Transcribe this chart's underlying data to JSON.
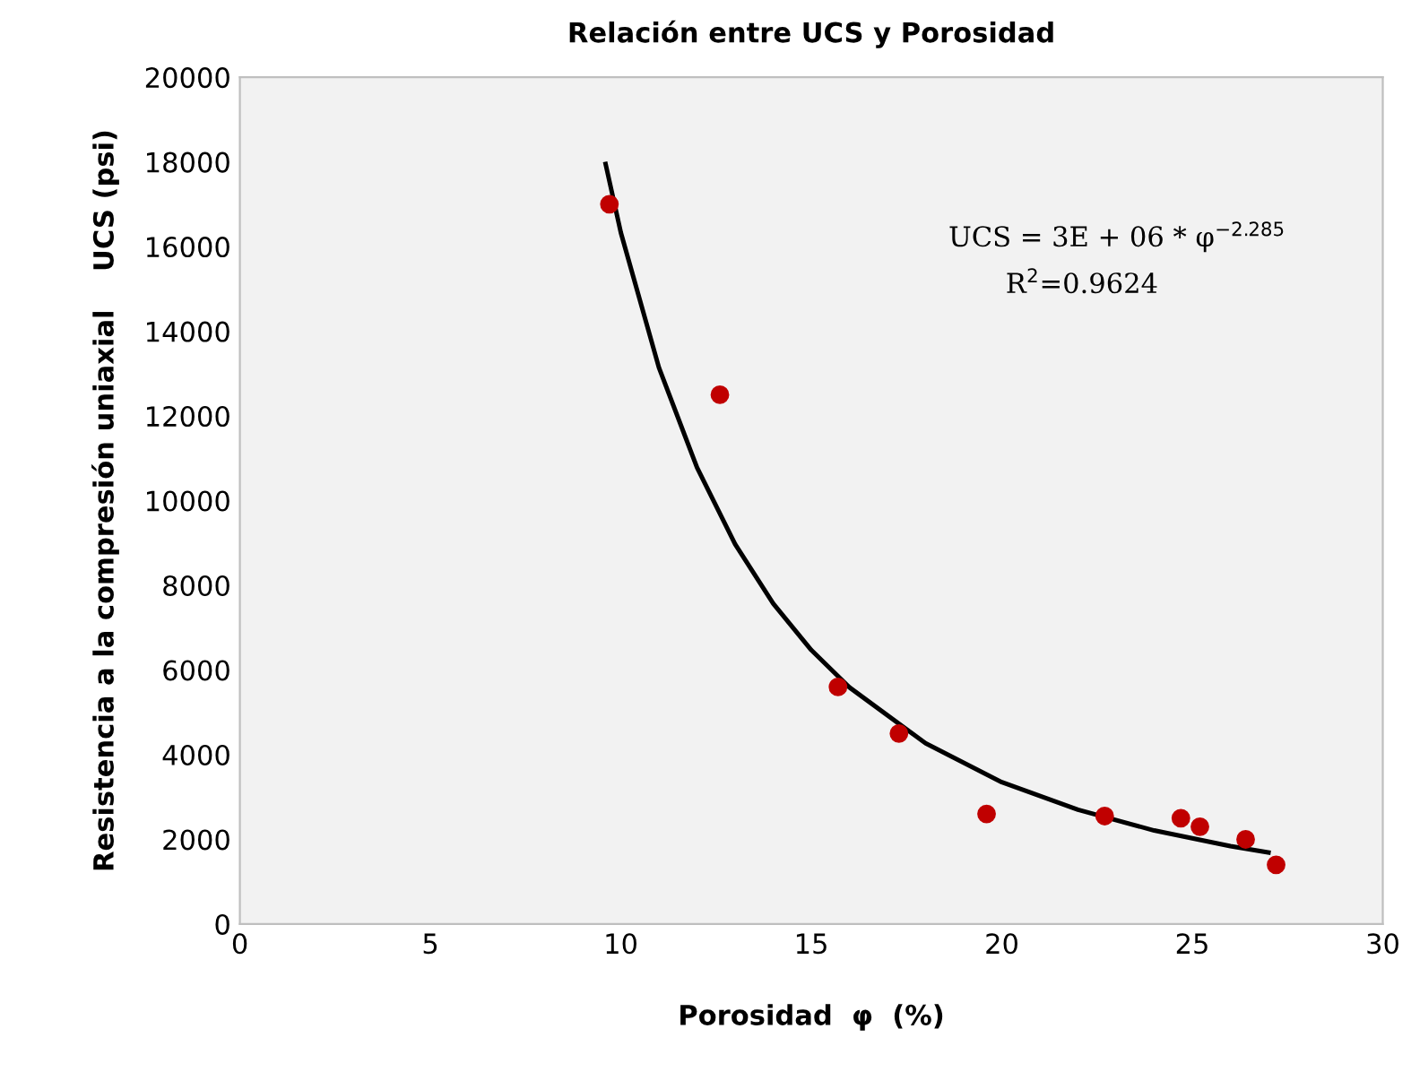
{
  "chart_data": {
    "type": "scatter",
    "title": "Relación entre UCS y Porosidad",
    "xlabel": "Porosidad  φ  (%)",
    "ylabel": "Resistencia a la compresión uniaxial    UCS (psi)",
    "xlim": [
      0,
      30
    ],
    "xticks": [
      0,
      5,
      10,
      15,
      20,
      25,
      30
    ],
    "ylim": [
      0,
      20000
    ],
    "yticks": [
      0,
      2000,
      4000,
      6000,
      8000,
      10000,
      12000,
      14000,
      16000,
      18000,
      20000
    ],
    "grid": false,
    "legend": false,
    "marker": "circle",
    "series": [
      {
        "color": "#c00000",
        "x": [
          9.7,
          12.6,
          15.7,
          17.3,
          19.6,
          22.7,
          24.7,
          25.2,
          26.4,
          27.2
        ],
        "values": [
          17000,
          12500,
          5600,
          4500,
          2600,
          2550,
          2500,
          2300,
          2000,
          1400
        ]
      },
      {
        "type": "line",
        "color": "#000000",
        "marker": "none",
        "line_style": "solid",
        "x": [
          9.6,
          10,
          11,
          12,
          13,
          14,
          15,
          16,
          18,
          20,
          22,
          24,
          26,
          27
        ],
        "values": [
          17950,
          16330,
          13140,
          10780,
          8970,
          7570,
          6470,
          5590,
          4270,
          3350,
          2700,
          2210,
          1840,
          1690
        ]
      }
    ],
    "annotations": [
      "UCS = 3E + 06 * φ$^{−2.285}$",
      "R$^{2}$=0.9624"
    ]
  }
}
